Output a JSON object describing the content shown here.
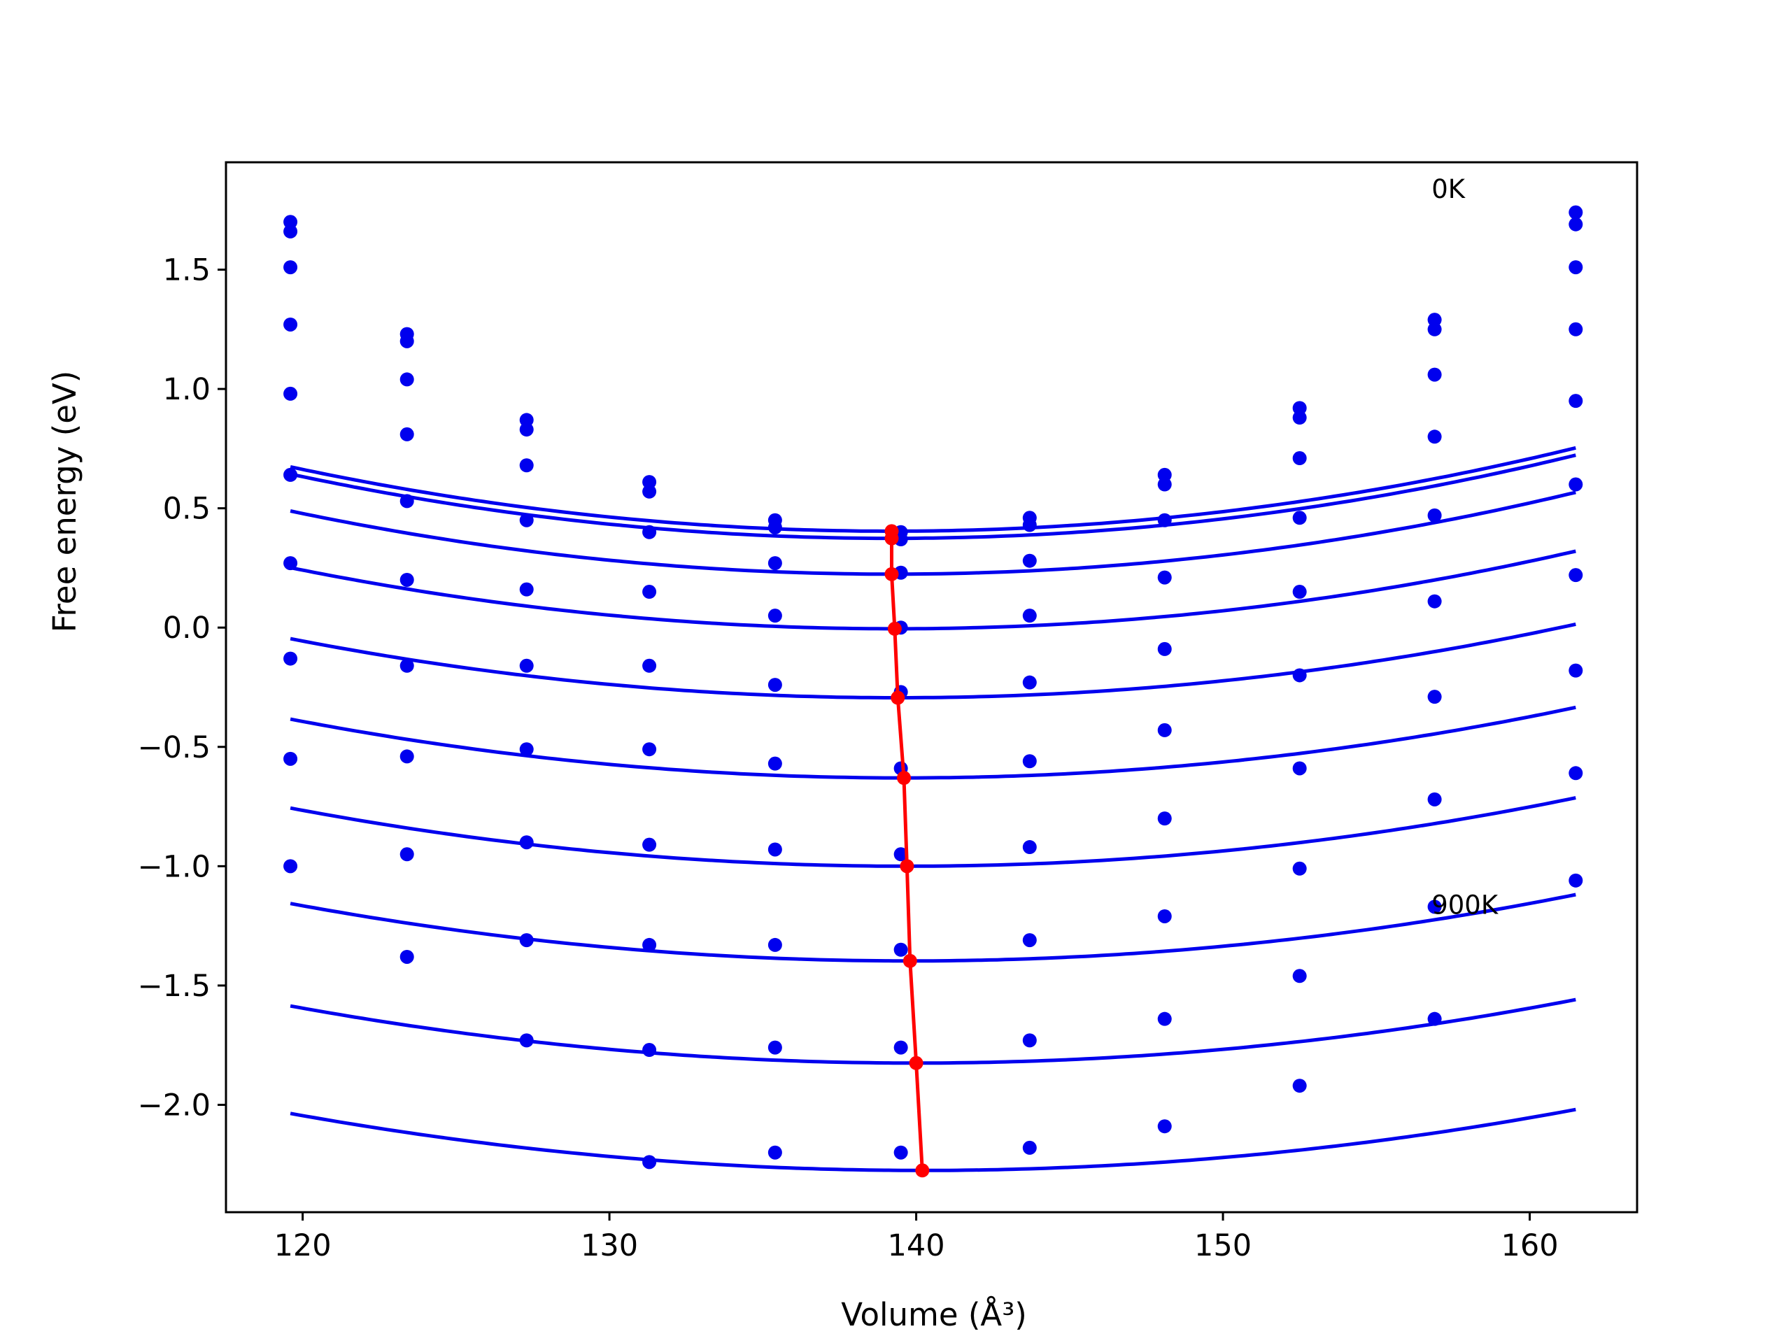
{
  "chart_data": {
    "type": "line",
    "xlabel": "Volume (Å³)",
    "ylabel": "Free energy (eV)",
    "xlim": [
      117.5,
      163.5
    ],
    "ylim": [
      -2.45,
      1.95
    ],
    "xticks": [
      120,
      130,
      140,
      150,
      160
    ],
    "xtick_labels": [
      "120",
      "130",
      "140",
      "150",
      "160"
    ],
    "yticks": [
      -2.0,
      -1.5,
      -1.0,
      -0.5,
      0.0,
      0.5,
      1.0,
      1.5
    ],
    "ytick_labels": [
      "−2.0",
      "−1.5",
      "−1.0",
      "−0.5",
      "0.0",
      "0.5",
      "1.0",
      "1.5"
    ],
    "grid": false,
    "colors": {
      "curves": "#0000ee",
      "min_line": "#ff0000",
      "axes": "#000000"
    },
    "annotations": [
      {
        "text": "0K",
        "x": 156.8,
        "y": 1.8
      },
      {
        "text": "900K",
        "x": 156.8,
        "y": -1.2
      }
    ],
    "x": [
      119.6,
      123.4,
      127.3,
      131.3,
      135.4,
      139.5,
      143.7,
      148.1,
      152.5,
      156.9,
      161.5
    ],
    "series": [
      {
        "points": [
          1.7,
          1.23,
          0.87,
          0.61,
          0.45,
          0.4,
          0.46,
          0.64,
          0.92,
          1.29,
          1.74
        ],
        "fit": {
          "vmin": 139.2,
          "emin": 0.404,
          "a": 0.000702
        }
      },
      {
        "points": [
          1.66,
          1.2,
          0.83,
          0.57,
          0.42,
          0.37,
          0.43,
          0.6,
          0.88,
          1.25,
          1.69
        ],
        "fit": {
          "vmin": 139.2,
          "emin": 0.374,
          "a": 0.000701
        }
      },
      {
        "points": [
          1.51,
          1.04,
          0.68,
          0.4,
          0.27,
          0.23,
          0.28,
          0.45,
          0.71,
          1.06,
          1.51
        ],
        "fit": {
          "vmin": 139.2,
          "emin": 0.224,
          "a": 0.000689
        }
      },
      {
        "points": [
          1.27,
          0.81,
          0.45,
          0.15,
          0.05,
          0.0,
          0.05,
          0.21,
          0.46,
          0.8,
          1.25
        ],
        "fit": {
          "vmin": 139.3,
          "emin": -0.005,
          "a": 0.00066
        }
      },
      {
        "points": [
          0.98,
          0.53,
          0.16,
          -0.16,
          -0.24,
          -0.27,
          -0.23,
          -0.09,
          0.15,
          0.47,
          0.95
        ],
        "fit": {
          "vmin": 139.4,
          "emin": -0.294,
          "a": 0.000631
        }
      },
      {
        "points": [
          0.64,
          0.2,
          -0.16,
          -0.51,
          -0.57,
          -0.59,
          -0.56,
          -0.43,
          -0.2,
          0.11,
          0.6
        ],
        "fit": {
          "vmin": 139.6,
          "emin": -0.63,
          "a": 0.000616
        }
      },
      {
        "points": [
          0.27,
          -0.16,
          -0.51,
          -0.91,
          -0.93,
          -0.95,
          -0.92,
          -0.8,
          -0.59,
          -0.29,
          0.22
        ],
        "fit": {
          "vmin": 139.7,
          "emin": -1.0,
          "a": 0.000603
        }
      },
      {
        "points": [
          -0.13,
          -0.54,
          -0.9,
          -1.33,
          -1.33,
          -1.35,
          -1.31,
          -1.21,
          -1.01,
          -0.72,
          -0.18
        ],
        "fit": {
          "vmin": 139.8,
          "emin": -1.397,
          "a": 0.00059
        }
      },
      {
        "points": [
          -0.55,
          -0.95,
          -1.31,
          -1.77,
          -1.76,
          -1.76,
          -1.73,
          -1.64,
          -1.46,
          -1.17,
          -0.61
        ],
        "fit": {
          "vmin": 140.0,
          "emin": -1.825,
          "a": 0.000575
        }
      },
      {
        "points": [
          -1.0,
          -1.38,
          -1.73,
          -2.24,
          -2.2,
          -2.2,
          -2.18,
          -2.09,
          -1.92,
          -1.64,
          -1.06
        ],
        "fit": {
          "vmin": 140.2,
          "emin": -2.275,
          "a": 0.000563
        }
      }
    ],
    "minimum_line": {
      "x": [
        139.2,
        139.2,
        139.2,
        139.3,
        139.4,
        139.6,
        139.7,
        139.8,
        140.0,
        140.2
      ],
      "y": [
        0.404,
        0.374,
        0.224,
        -0.005,
        -0.294,
        -0.63,
        -1.0,
        -1.397,
        -1.825,
        -2.275
      ]
    }
  }
}
